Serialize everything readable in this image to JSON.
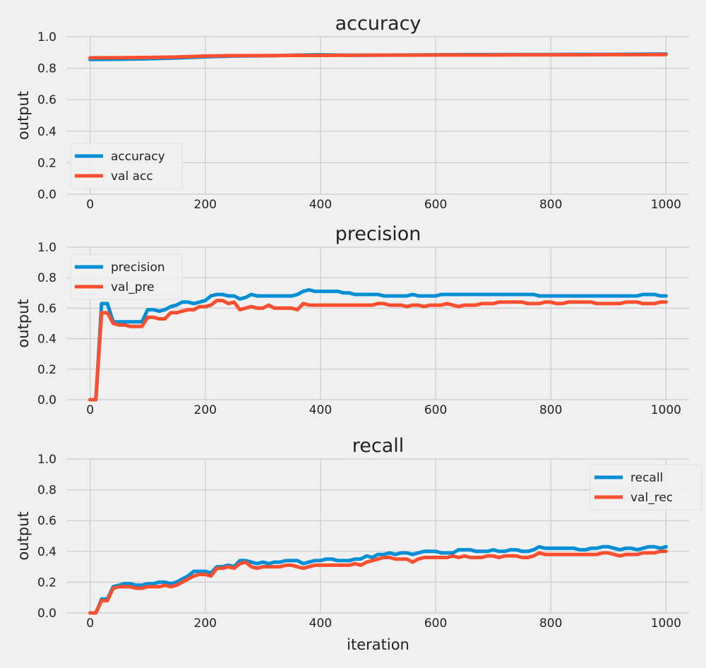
{
  "chart_data": [
    {
      "type": "line",
      "title": "accuracy",
      "xlabel": "",
      "ylabel": "output",
      "xlim": [
        -40,
        1040
      ],
      "ylim": [
        0,
        1
      ],
      "xticks": [
        "0",
        "200",
        "400",
        "600",
        "800",
        "1000"
      ],
      "yticks": [
        "0.0",
        "0.2",
        "0.4",
        "0.6",
        "0.8",
        "1.0"
      ],
      "grid": true,
      "legend": "lower-left",
      "series": [
        {
          "name": "accuracy",
          "color": "#008fd5",
          "x": [
            0,
            50,
            100,
            150,
            200,
            250,
            300,
            350,
            400,
            450,
            500,
            550,
            600,
            650,
            700,
            750,
            800,
            850,
            900,
            950,
            1000
          ],
          "values": [
            0.855,
            0.857,
            0.86,
            0.865,
            0.872,
            0.877,
            0.879,
            0.882,
            0.885,
            0.882,
            0.883,
            0.884,
            0.885,
            0.886,
            0.886,
            0.887,
            0.887,
            0.888,
            0.888,
            0.889,
            0.89
          ]
        },
        {
          "name": "val acc",
          "color": "#fc4f30",
          "x": [
            0,
            50,
            100,
            150,
            200,
            250,
            300,
            350,
            400,
            450,
            500,
            550,
            600,
            650,
            700,
            750,
            800,
            850,
            900,
            950,
            1000
          ],
          "values": [
            0.866,
            0.867,
            0.868,
            0.871,
            0.877,
            0.88,
            0.88,
            0.881,
            0.881,
            0.882,
            0.883,
            0.883,
            0.884,
            0.884,
            0.884,
            0.885,
            0.885,
            0.885,
            0.886,
            0.886,
            0.887
          ]
        }
      ]
    },
    {
      "type": "line",
      "title": "precision",
      "xlabel": "",
      "ylabel": "output",
      "xlim": [
        -40,
        1040
      ],
      "ylim": [
        0,
        1
      ],
      "xticks": [
        "0",
        "200",
        "400",
        "600",
        "800",
        "1000"
      ],
      "yticks": [
        "0.0",
        "0.2",
        "0.4",
        "0.6",
        "0.8",
        "1.0"
      ],
      "grid": true,
      "legend": "upper-left",
      "series": [
        {
          "name": "precision",
          "color": "#008fd5",
          "x": [
            0,
            10,
            20,
            30,
            40,
            50,
            60,
            70,
            80,
            90,
            100,
            110,
            120,
            130,
            140,
            150,
            160,
            170,
            180,
            190,
            200,
            210,
            220,
            230,
            240,
            250,
            260,
            270,
            280,
            290,
            300,
            310,
            320,
            330,
            340,
            350,
            360,
            370,
            380,
            390,
            400,
            410,
            420,
            430,
            440,
            450,
            460,
            470,
            480,
            490,
            500,
            510,
            520,
            530,
            540,
            550,
            560,
            570,
            580,
            590,
            600,
            610,
            620,
            630,
            640,
            650,
            660,
            670,
            680,
            690,
            700,
            710,
            720,
            730,
            740,
            750,
            760,
            770,
            780,
            790,
            800,
            810,
            820,
            830,
            840,
            850,
            860,
            870,
            880,
            890,
            900,
            910,
            920,
            930,
            940,
            950,
            960,
            970,
            980,
            990,
            1000
          ],
          "values": [
            0,
            0,
            0.63,
            0.63,
            0.51,
            0.51,
            0.51,
            0.51,
            0.51,
            0.51,
            0.59,
            0.59,
            0.58,
            0.59,
            0.61,
            0.62,
            0.64,
            0.64,
            0.63,
            0.64,
            0.65,
            0.68,
            0.69,
            0.69,
            0.68,
            0.68,
            0.66,
            0.67,
            0.69,
            0.68,
            0.68,
            0.68,
            0.68,
            0.68,
            0.68,
            0.68,
            0.69,
            0.71,
            0.72,
            0.71,
            0.71,
            0.71,
            0.71,
            0.71,
            0.7,
            0.7,
            0.69,
            0.69,
            0.69,
            0.69,
            0.69,
            0.68,
            0.68,
            0.68,
            0.68,
            0.68,
            0.69,
            0.68,
            0.68,
            0.68,
            0.68,
            0.69,
            0.69,
            0.69,
            0.69,
            0.69,
            0.69,
            0.69,
            0.69,
            0.69,
            0.69,
            0.69,
            0.69,
            0.69,
            0.69,
            0.69,
            0.69,
            0.69,
            0.68,
            0.68,
            0.68,
            0.68,
            0.68,
            0.68,
            0.68,
            0.68,
            0.68,
            0.68,
            0.68,
            0.68,
            0.68,
            0.68,
            0.68,
            0.68,
            0.68,
            0.68,
            0.69,
            0.69,
            0.69,
            0.68,
            0.68
          ]
        },
        {
          "name": "val_pre",
          "color": "#fc4f30",
          "x": [
            0,
            10,
            20,
            30,
            40,
            50,
            60,
            70,
            80,
            90,
            100,
            110,
            120,
            130,
            140,
            150,
            160,
            170,
            180,
            190,
            200,
            210,
            220,
            230,
            240,
            250,
            260,
            270,
            280,
            290,
            300,
            310,
            320,
            330,
            340,
            350,
            360,
            370,
            380,
            390,
            400,
            410,
            420,
            430,
            440,
            450,
            460,
            470,
            480,
            490,
            500,
            510,
            520,
            530,
            540,
            550,
            560,
            570,
            580,
            590,
            600,
            610,
            620,
            630,
            640,
            650,
            660,
            670,
            680,
            690,
            700,
            710,
            720,
            730,
            740,
            750,
            760,
            770,
            780,
            790,
            800,
            810,
            820,
            830,
            840,
            850,
            860,
            870,
            880,
            890,
            900,
            910,
            920,
            930,
            940,
            950,
            960,
            970,
            980,
            990,
            1000
          ],
          "values": [
            0,
            0,
            0.57,
            0.57,
            0.5,
            0.49,
            0.49,
            0.48,
            0.48,
            0.48,
            0.54,
            0.54,
            0.53,
            0.53,
            0.57,
            0.57,
            0.58,
            0.59,
            0.59,
            0.61,
            0.61,
            0.62,
            0.65,
            0.65,
            0.63,
            0.64,
            0.59,
            0.6,
            0.61,
            0.6,
            0.6,
            0.62,
            0.6,
            0.6,
            0.6,
            0.6,
            0.59,
            0.63,
            0.62,
            0.62,
            0.62,
            0.62,
            0.62,
            0.62,
            0.62,
            0.62,
            0.62,
            0.62,
            0.62,
            0.62,
            0.63,
            0.63,
            0.62,
            0.62,
            0.62,
            0.61,
            0.62,
            0.62,
            0.61,
            0.62,
            0.62,
            0.62,
            0.63,
            0.62,
            0.61,
            0.62,
            0.62,
            0.62,
            0.63,
            0.63,
            0.63,
            0.64,
            0.64,
            0.64,
            0.64,
            0.64,
            0.63,
            0.63,
            0.63,
            0.64,
            0.64,
            0.63,
            0.63,
            0.64,
            0.64,
            0.64,
            0.64,
            0.64,
            0.63,
            0.63,
            0.63,
            0.63,
            0.63,
            0.64,
            0.64,
            0.64,
            0.63,
            0.63,
            0.63,
            0.64,
            0.64
          ]
        }
      ]
    },
    {
      "type": "line",
      "title": "recall",
      "xlabel": "iteration",
      "ylabel": "output",
      "xlim": [
        -40,
        1040
      ],
      "ylim": [
        0,
        1
      ],
      "xticks": [
        "0",
        "200",
        "400",
        "600",
        "800",
        "1000"
      ],
      "yticks": [
        "0.0",
        "0.2",
        "0.4",
        "0.6",
        "0.8",
        "1.0"
      ],
      "grid": true,
      "legend": "upper-right",
      "series": [
        {
          "name": "recall",
          "color": "#008fd5",
          "x": [
            0,
            10,
            20,
            30,
            40,
            50,
            60,
            70,
            80,
            90,
            100,
            110,
            120,
            130,
            140,
            150,
            160,
            170,
            180,
            190,
            200,
            210,
            220,
            230,
            240,
            250,
            260,
            270,
            280,
            290,
            300,
            310,
            320,
            330,
            340,
            350,
            360,
            370,
            380,
            390,
            400,
            410,
            420,
            430,
            440,
            450,
            460,
            470,
            480,
            490,
            500,
            510,
            520,
            530,
            540,
            550,
            560,
            570,
            580,
            590,
            600,
            610,
            620,
            630,
            640,
            650,
            660,
            670,
            680,
            690,
            700,
            710,
            720,
            730,
            740,
            750,
            760,
            770,
            780,
            790,
            800,
            810,
            820,
            830,
            840,
            850,
            860,
            870,
            880,
            890,
            900,
            910,
            920,
            930,
            940,
            950,
            960,
            970,
            980,
            990,
            1000
          ],
          "values": [
            0,
            0,
            0.09,
            0.09,
            0.17,
            0.18,
            0.19,
            0.19,
            0.18,
            0.18,
            0.19,
            0.19,
            0.2,
            0.2,
            0.19,
            0.2,
            0.22,
            0.24,
            0.27,
            0.27,
            0.27,
            0.26,
            0.3,
            0.3,
            0.31,
            0.3,
            0.34,
            0.34,
            0.33,
            0.32,
            0.33,
            0.32,
            0.33,
            0.33,
            0.34,
            0.34,
            0.34,
            0.32,
            0.33,
            0.34,
            0.34,
            0.35,
            0.35,
            0.34,
            0.34,
            0.34,
            0.35,
            0.35,
            0.37,
            0.36,
            0.38,
            0.38,
            0.39,
            0.38,
            0.39,
            0.39,
            0.38,
            0.39,
            0.4,
            0.4,
            0.4,
            0.39,
            0.39,
            0.39,
            0.41,
            0.41,
            0.41,
            0.4,
            0.4,
            0.4,
            0.41,
            0.4,
            0.4,
            0.41,
            0.41,
            0.4,
            0.4,
            0.41,
            0.43,
            0.42,
            0.42,
            0.42,
            0.42,
            0.42,
            0.42,
            0.41,
            0.41,
            0.42,
            0.42,
            0.43,
            0.43,
            0.42,
            0.41,
            0.42,
            0.42,
            0.41,
            0.42,
            0.43,
            0.43,
            0.42,
            0.43
          ]
        },
        {
          "name": "val_rec",
          "color": "#fc4f30",
          "x": [
            0,
            10,
            20,
            30,
            40,
            50,
            60,
            70,
            80,
            90,
            100,
            110,
            120,
            130,
            140,
            150,
            160,
            170,
            180,
            190,
            200,
            210,
            220,
            230,
            240,
            250,
            260,
            270,
            280,
            290,
            300,
            310,
            320,
            330,
            340,
            350,
            360,
            370,
            380,
            390,
            400,
            410,
            420,
            430,
            440,
            450,
            460,
            470,
            480,
            490,
            500,
            510,
            520,
            530,
            540,
            550,
            560,
            570,
            580,
            590,
            600,
            610,
            620,
            630,
            640,
            650,
            660,
            670,
            680,
            690,
            700,
            710,
            720,
            730,
            740,
            750,
            760,
            770,
            780,
            790,
            800,
            810,
            820,
            830,
            840,
            850,
            860,
            870,
            880,
            890,
            900,
            910,
            920,
            930,
            940,
            950,
            960,
            970,
            980,
            990,
            1000
          ],
          "values": [
            0,
            0,
            0.08,
            0.08,
            0.16,
            0.17,
            0.17,
            0.17,
            0.16,
            0.16,
            0.17,
            0.17,
            0.17,
            0.18,
            0.17,
            0.18,
            0.2,
            0.22,
            0.24,
            0.25,
            0.25,
            0.24,
            0.29,
            0.29,
            0.3,
            0.29,
            0.32,
            0.33,
            0.3,
            0.29,
            0.3,
            0.3,
            0.3,
            0.3,
            0.31,
            0.31,
            0.3,
            0.29,
            0.3,
            0.31,
            0.31,
            0.31,
            0.31,
            0.31,
            0.31,
            0.31,
            0.32,
            0.31,
            0.33,
            0.34,
            0.35,
            0.36,
            0.36,
            0.35,
            0.35,
            0.35,
            0.33,
            0.35,
            0.36,
            0.36,
            0.36,
            0.36,
            0.36,
            0.37,
            0.36,
            0.37,
            0.36,
            0.36,
            0.36,
            0.37,
            0.37,
            0.36,
            0.37,
            0.37,
            0.37,
            0.36,
            0.36,
            0.37,
            0.39,
            0.38,
            0.38,
            0.38,
            0.38,
            0.38,
            0.38,
            0.38,
            0.38,
            0.38,
            0.38,
            0.39,
            0.39,
            0.38,
            0.37,
            0.38,
            0.38,
            0.38,
            0.39,
            0.39,
            0.39,
            0.4,
            0.4
          ]
        }
      ]
    }
  ]
}
